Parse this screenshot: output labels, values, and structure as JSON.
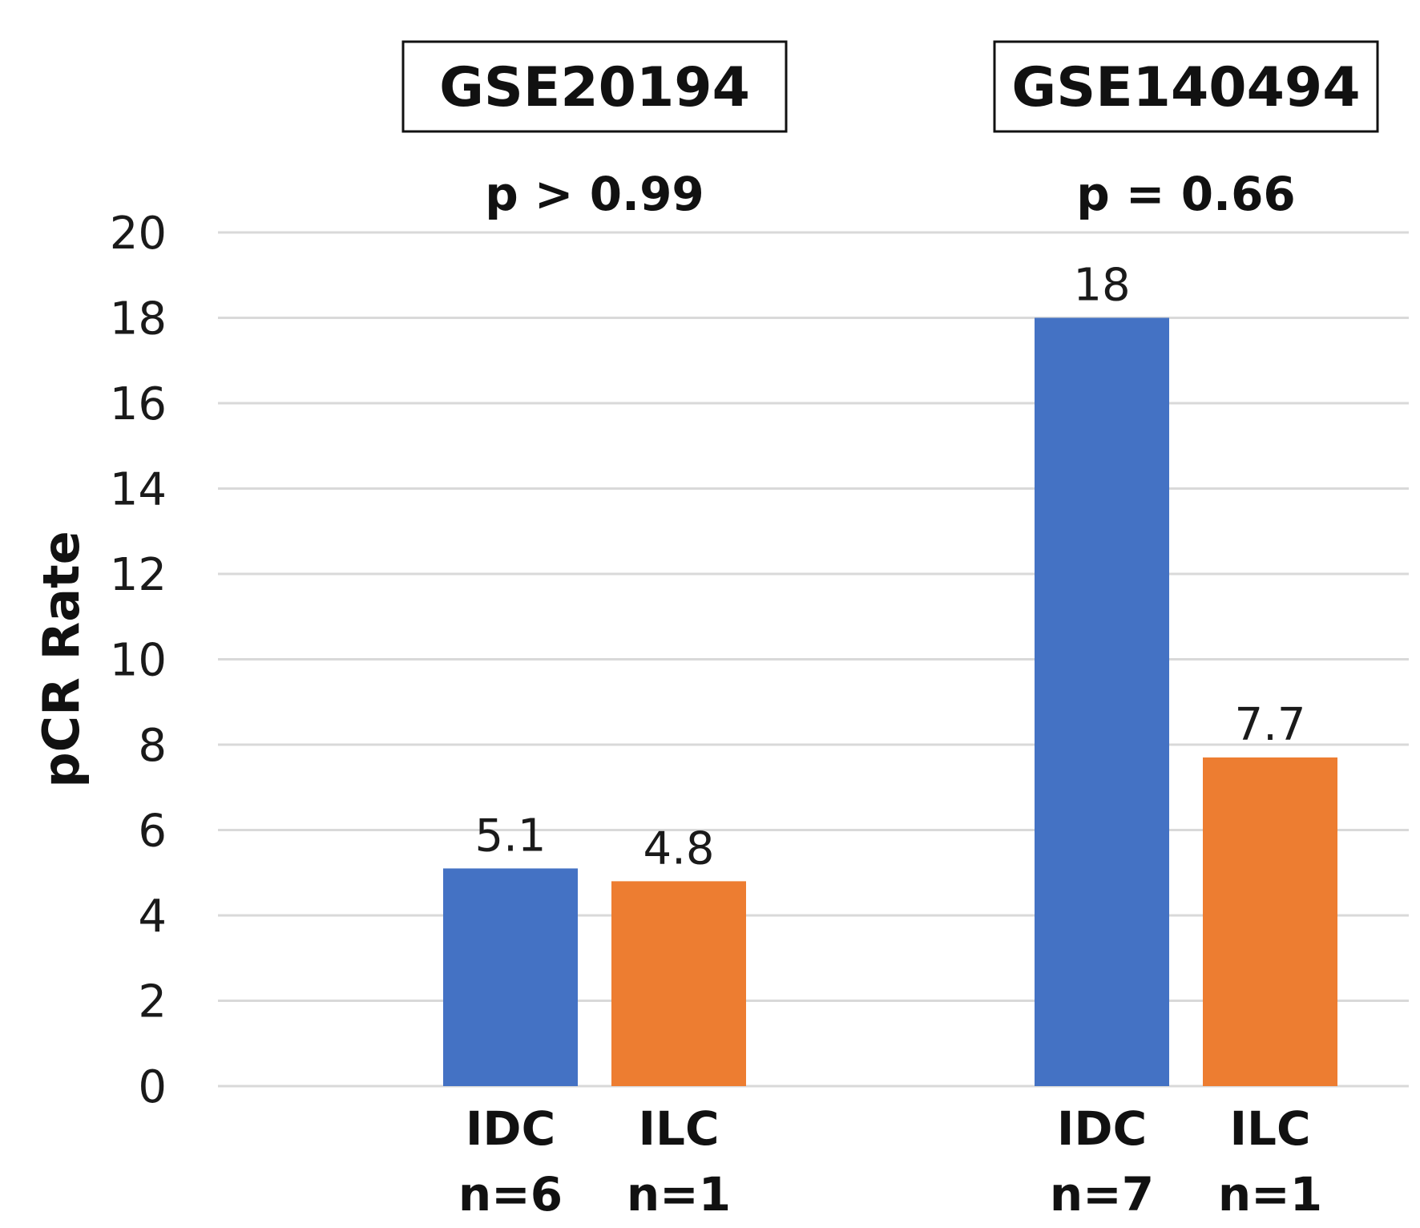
{
  "chart_data": {
    "type": "bar",
    "ylabel": "pCR Rate",
    "ylim": [
      0,
      20
    ],
    "yticks": [
      "0",
      "2",
      "4",
      "6",
      "8",
      "10",
      "12",
      "14",
      "16",
      "18",
      "20"
    ],
    "grid": true,
    "colors": {
      "IDC": "#4472c4",
      "ILC": "#ed7d31"
    },
    "groups": [
      {
        "dataset": "GSE20194",
        "pvalue": "p > 0.99",
        "bars": [
          {
            "type": "IDC",
            "n": "n=6",
            "value": 5.1,
            "value_label": "5.1"
          },
          {
            "type": "ILC",
            "n": "n=1",
            "value": 4.8,
            "value_label": "4.8"
          }
        ]
      },
      {
        "dataset": "GSE140494",
        "pvalue": "p = 0.66",
        "bars": [
          {
            "type": "IDC",
            "n": "n=7",
            "value": 18,
            "value_label": "18"
          },
          {
            "type": "ILC",
            "n": "n=1",
            "value": 7.7,
            "value_label": "7.7"
          }
        ]
      }
    ]
  }
}
